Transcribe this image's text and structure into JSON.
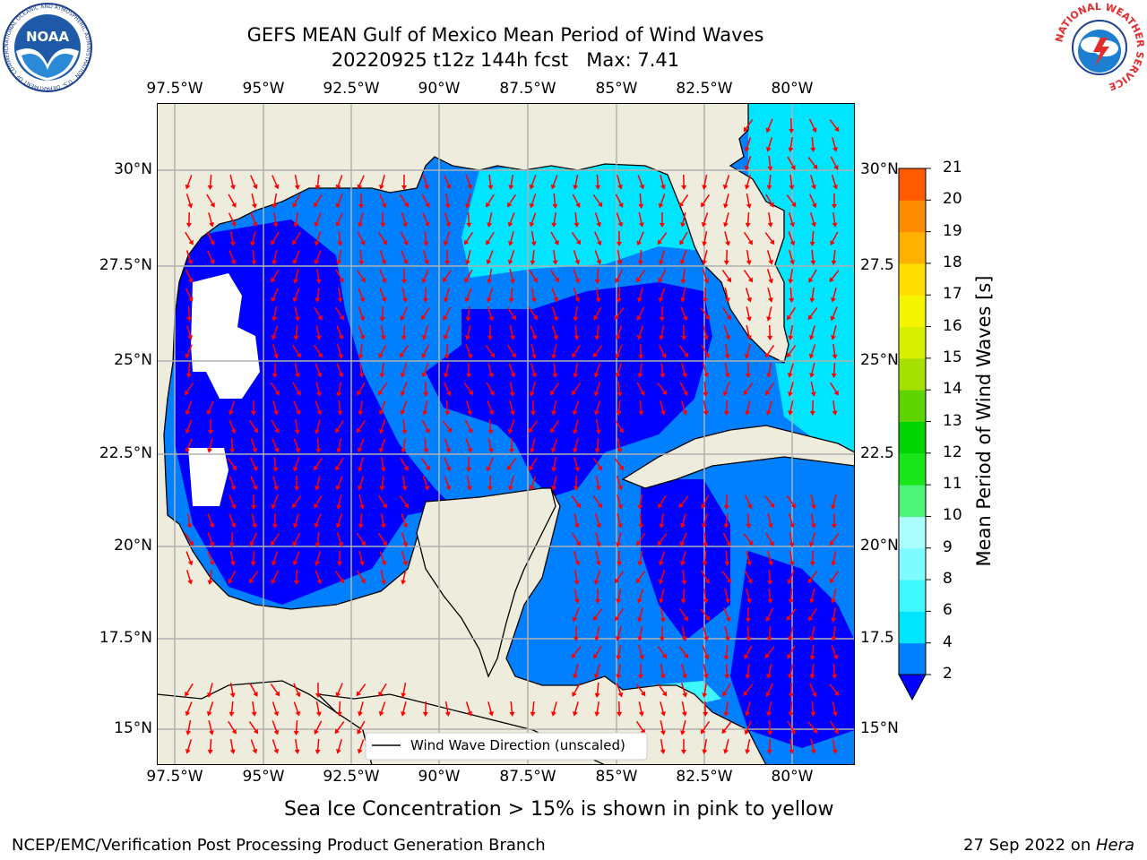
{
  "title_line1": "GEFS MEAN Gulf of Mexico Mean Period of Wind Waves",
  "title_line2": "20220925 t12z 144h fcst   Max: 7.41",
  "longitude_labels": [
    "97.5°W",
    "95°W",
    "92.5°W",
    "90°W",
    "87.5°W",
    "85°W",
    "82.5°W",
    "80°W"
  ],
  "latitude_labels_left": [
    "30°N",
    "27.5°N",
    "25°N",
    "22.5°N",
    "20°N",
    "17.5°N",
    "15°N"
  ],
  "latitude_labels_right": [
    "30°N",
    "27.5",
    "25°N",
    "22.5",
    "20°N",
    "17.5",
    "15°N"
  ],
  "colorbar": {
    "label": "Mean Period of Wind Waves [s]",
    "ticks": [
      "2",
      "4",
      "6",
      "8",
      "9",
      "10",
      "11",
      "12",
      "13",
      "14",
      "15",
      "16",
      "17",
      "18",
      "19",
      "20",
      "21"
    ],
    "colors": [
      "#0080ff",
      "#00e5ff",
      "#3ff7ff",
      "#7ffcff",
      "#aafffe",
      "#4cf57a",
      "#19e619",
      "#00d400",
      "#5dd400",
      "#a6e000",
      "#d6f000",
      "#f5f500",
      "#ffdd00",
      "#ffb000",
      "#ff8c00",
      "#ff5a00",
      "#ff2a00",
      "#ff0000"
    ]
  },
  "legend": {
    "label": "Wind Wave Direction (unscaled)"
  },
  "caption": "Sea Ice Concentration > 15% is shown in pink to yellow",
  "footer_left": "NCEP/EMC/Verification Post Processing Product Generation Branch",
  "footer_right_date": "27 Sep 2022 on ",
  "footer_right_host": "Hera",
  "logos": {
    "noaa_text": "NOAA",
    "noaa_ring_text": "NATIONAL OCEANIC AND ATMOSPHERIC ADMINISTRATION · U.S. DEPARTMENT OF COMMERCE",
    "nws_ring_text": "NATIONAL WEATHER SERVICE"
  },
  "map_colors": {
    "land": "#eeecdc",
    "ocean_deep": "#0000ff",
    "ocean_mid": "#0080ff",
    "ocean_cyan": "#00e5ff",
    "ocean_light": "#3ff7ff",
    "arrow": "#ff0000",
    "grid": "#b0b0b0"
  }
}
